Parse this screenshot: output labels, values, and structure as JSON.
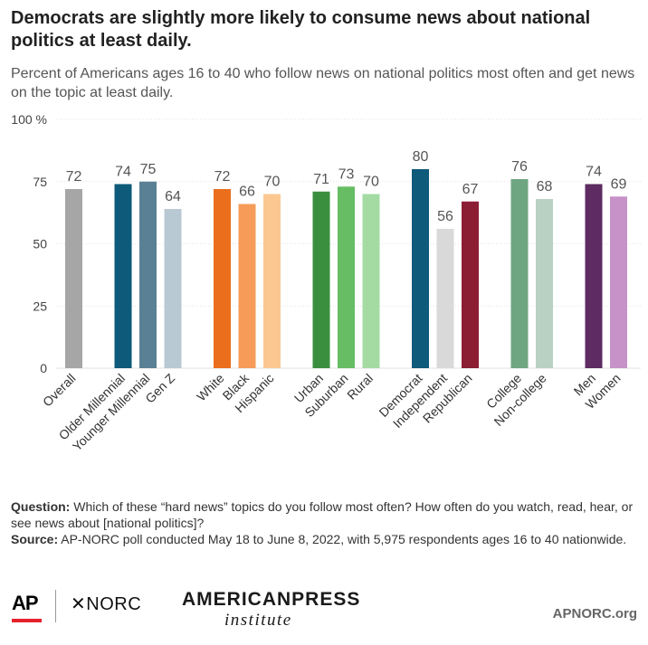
{
  "title": "Democrats are slightly more likely to consume news about national politics at least daily.",
  "subtitle": "Percent of Americans ages 16 to 40 who follow news on national politics most often and get news on the topic at least daily.",
  "chart_data": {
    "type": "bar",
    "ylim": [
      0,
      100
    ],
    "yticks": [
      {
        "value": 0,
        "label": "0"
      },
      {
        "value": 25,
        "label": "25"
      },
      {
        "value": 50,
        "label": "50"
      },
      {
        "value": 75,
        "label": "75"
      },
      {
        "value": 100,
        "label": "100 %"
      }
    ],
    "grid": true,
    "groups": [
      {
        "bars": [
          {
            "category": "Overall",
            "value": 72,
            "color": "#a6a6a6"
          }
        ]
      },
      {
        "bars": [
          {
            "category": "Older Millennial",
            "value": 74,
            "color": "#0d5a7a"
          },
          {
            "category": "Younger Millennial",
            "value": 75,
            "color": "#5a8096"
          },
          {
            "category": "Gen Z",
            "value": 64,
            "color": "#b8c9d4"
          }
        ]
      },
      {
        "bars": [
          {
            "category": "White",
            "value": 72,
            "color": "#ea6e1b"
          },
          {
            "category": "Black",
            "value": 66,
            "color": "#f69c58"
          },
          {
            "category": "Hispanic",
            "value": 70,
            "color": "#fbc892"
          }
        ]
      },
      {
        "bars": [
          {
            "category": "Urban",
            "value": 71,
            "color": "#3a8f3f"
          },
          {
            "category": "Suburban",
            "value": 73,
            "color": "#66bd63"
          },
          {
            "category": "Rural",
            "value": 70,
            "color": "#a4dba3"
          }
        ]
      },
      {
        "bars": [
          {
            "category": "Democrat",
            "value": 80,
            "color": "#0d5a7a"
          },
          {
            "category": "Independent",
            "value": 56,
            "color": "#d9d9d9"
          },
          {
            "category": "Republican",
            "value": 67,
            "color": "#8b1e32"
          }
        ]
      },
      {
        "bars": [
          {
            "category": "College",
            "value": 76,
            "color": "#6ea682"
          },
          {
            "category": "Non-college",
            "value": 68,
            "color": "#b9d1c2"
          }
        ]
      },
      {
        "bars": [
          {
            "category": "Men",
            "value": 74,
            "color": "#5e2b62"
          },
          {
            "category": "Women",
            "value": 69,
            "color": "#c792c8"
          }
        ]
      }
    ]
  },
  "notes": {
    "question_label": "Question:",
    "question_text": " Which of these “hard news” topics do you follow most often? How often do you watch, read, hear, or see news about [national politics]?",
    "source_label": "Source:",
    "source_text": " AP-NORC poll conducted May 18 to June 8, 2022, with 5,975 respondents ages 16 to 40 nationwide."
  },
  "footer": {
    "ap_logo": "AP",
    "norc_logo": "✕NORC",
    "api_logo_top": "AMERICANPRESS",
    "api_logo_bottom": "institute",
    "site": "APNORC.org"
  }
}
